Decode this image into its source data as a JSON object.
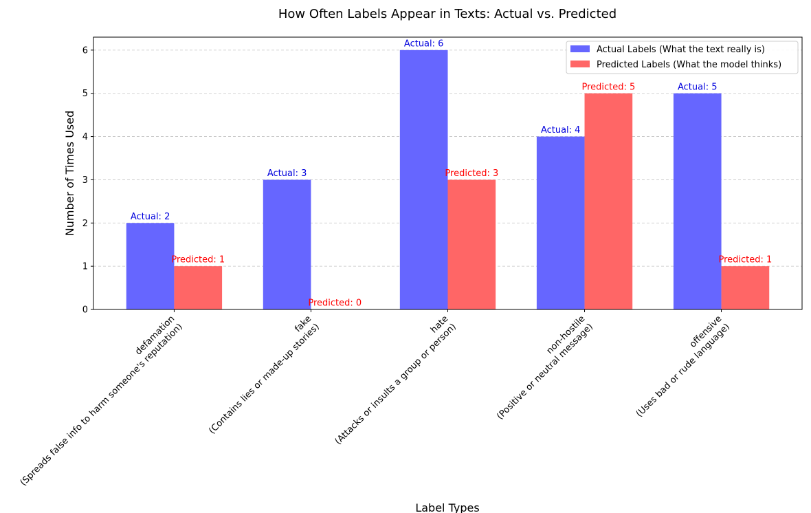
{
  "chart_data": {
    "type": "bar",
    "title": "How Often Labels Appear in Texts: Actual vs. Predicted",
    "xlabel": "Label Types",
    "ylabel": "Number of Times Used",
    "ylim": [
      0,
      6.3
    ],
    "yticks": [
      0,
      1,
      2,
      3,
      4,
      5,
      6
    ],
    "grid": true,
    "legend_position": "top-right",
    "categories": [
      [
        "defamation",
        "(Spreads false info to harm someone's reputation)"
      ],
      [
        "fake",
        "(Contains lies or made-up stories)"
      ],
      [
        "hate",
        "(Attacks or insults a group or person)"
      ],
      [
        "non-hostile",
        "(Positive or neutral message)"
      ],
      [
        "offensive",
        "(Uses bad or rude language)"
      ]
    ],
    "series": [
      {
        "name": "Actual Labels (What the text really is)",
        "values": [
          2,
          3,
          6,
          4,
          5
        ],
        "color": "#6666ff",
        "label_color": "#0000dd",
        "label_prefix": "Actual: "
      },
      {
        "name": "Predicted Labels (What the model thinks)",
        "values": [
          1,
          0,
          3,
          5,
          1
        ],
        "color": "#ff6666",
        "label_color": "#ff0000",
        "label_prefix": "Predicted: "
      }
    ]
  }
}
